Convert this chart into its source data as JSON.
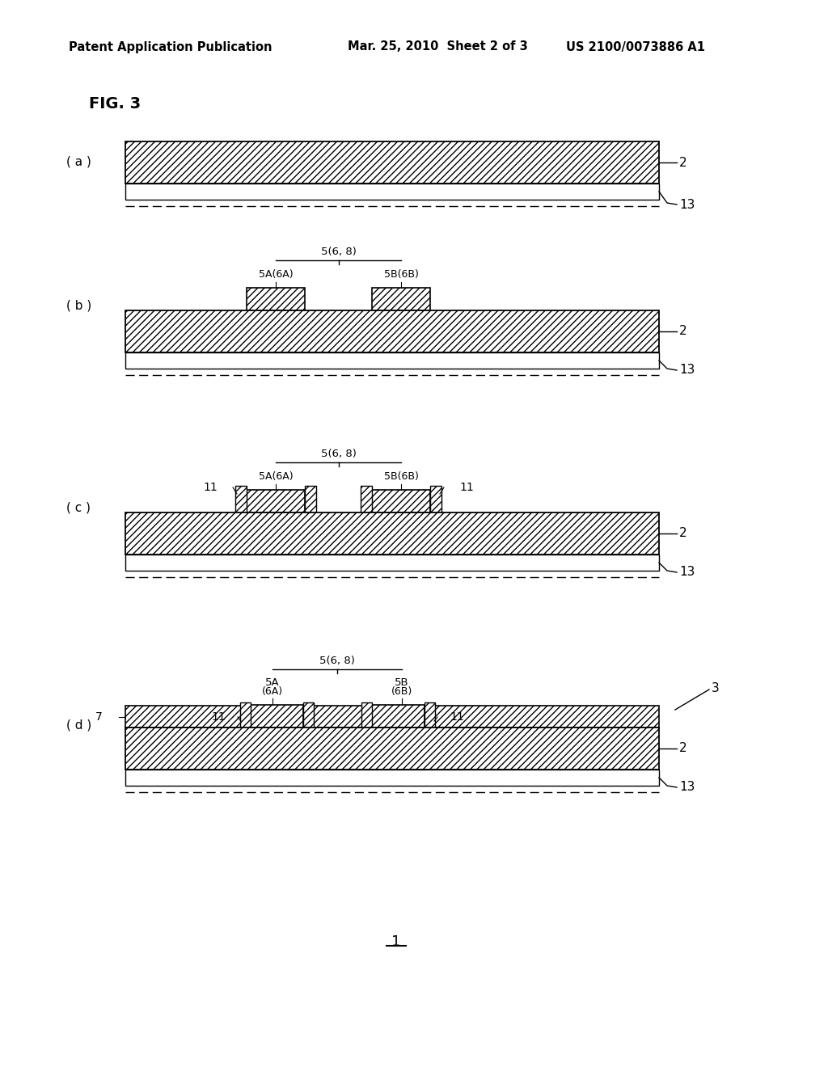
{
  "bg_color": "#ffffff",
  "header_left": "Patent Application Publication",
  "header_center": "Mar. 25, 2010  Sheet 2 of 3",
  "header_right": "US 2100/0073886 A1",
  "fig_label": "FIG. 3",
  "footer_label": "1",
  "panel_labels": [
    "( a )",
    "( b )",
    "( c )",
    "( d )"
  ],
  "hatch_pattern": "////",
  "line_color": "#000000",
  "hatch_color": "#000000",
  "face_color": "#ffffff"
}
